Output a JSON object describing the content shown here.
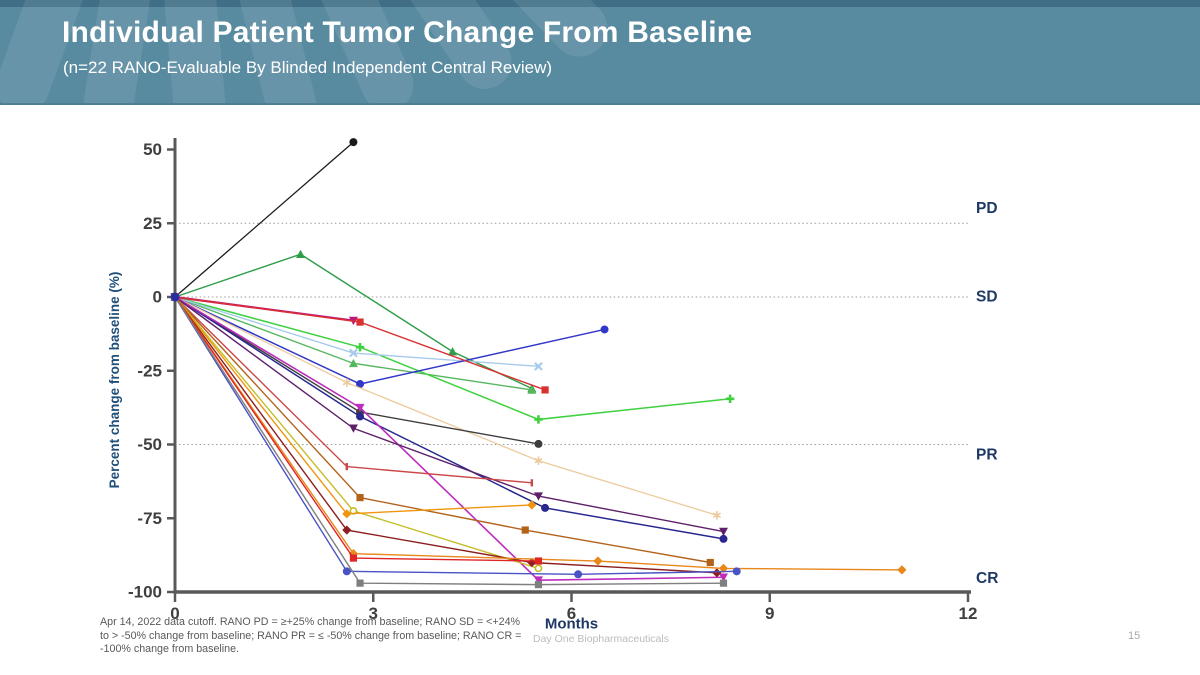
{
  "slide": {
    "title": "Individual Patient Tumor Change From Baseline",
    "subtitle": "(n=22 RANO-Evaluable By Blinded Independent Central Review)",
    "footnote_lines": [
      "Apr 14, 2022 data cutoff. RANO PD = ≥+25% change from baseline; RANO SD = <+24%",
      "to > -50% change from baseline; RANO PR = ≤ -50% change from baseline; RANO CR =",
      "-100% change from baseline."
    ],
    "footer_brand": "Day One Biopharmaceuticals",
    "page_number": "15",
    "colors": {
      "header_bg": "#588aa0",
      "header_top_strip": "#3f6e86",
      "axis": "#595959",
      "tick_label": "#3f3f3f",
      "gridline": "#9b9b9b",
      "label_navy": "#1f3864",
      "ylabel_blue": "#1f4e79"
    }
  },
  "chart_data": {
    "type": "line",
    "title": "",
    "xlabel": "Months",
    "ylabel": "Percent change from baseline (%)",
    "xlim": [
      0,
      12
    ],
    "ylim": [
      -100,
      54
    ],
    "xticks": [
      0,
      3,
      6,
      9,
      12
    ],
    "yticks": [
      50,
      25,
      0,
      -25,
      -50,
      -75,
      -100
    ],
    "gridline_values": [
      25,
      0,
      -50
    ],
    "grid": "dotted horizontal at +25, 0, -50; x-axis baseline at -100",
    "legend_position": "none",
    "origin_marker_color": "#2b2ba0",
    "threshold_labels": [
      {
        "label": "PD",
        "value": 30
      },
      {
        "label": "SD",
        "value": 0
      },
      {
        "label": "PR",
        "value": -53.5
      },
      {
        "label": "CR",
        "value": -95.5
      }
    ],
    "series": [
      {
        "name": "patient-01",
        "color": "#1a1a1a",
        "marker": "circle",
        "lw": 1.3,
        "points": [
          [
            0,
            0
          ],
          [
            2.7,
            52.5
          ]
        ]
      },
      {
        "name": "patient-02",
        "color": "#2e9e49",
        "marker": "triangle-up",
        "lw": 1.4,
        "points": [
          [
            0,
            0
          ],
          [
            1.9,
            14.5
          ],
          [
            4.2,
            -18.5
          ],
          [
            5.4,
            -31
          ]
        ]
      },
      {
        "name": "patient-03",
        "color": "#57b75e",
        "marker": "triangle-up",
        "lw": 1.4,
        "points": [
          [
            0,
            0
          ],
          [
            2.7,
            -22.5
          ],
          [
            5.4,
            -31.5
          ]
        ]
      },
      {
        "name": "patient-04",
        "color": "#3fd13f",
        "marker": "plus",
        "lw": 1.5,
        "points": [
          [
            0,
            0
          ],
          [
            2.8,
            -17
          ],
          [
            5.5,
            -41.5
          ],
          [
            8.4,
            -34.5
          ]
        ]
      },
      {
        "name": "patient-05",
        "color": "#a6cbec",
        "marker": "x",
        "lw": 1.4,
        "points": [
          [
            0,
            0
          ],
          [
            2.7,
            -19
          ],
          [
            5.5,
            -23.5
          ]
        ]
      },
      {
        "name": "patient-06",
        "color": "#3137c9",
        "marker": "circle",
        "lw": 1.5,
        "points": [
          [
            0,
            0
          ],
          [
            2.8,
            -29.5
          ],
          [
            6.5,
            -11
          ]
        ]
      },
      {
        "name": "patient-07",
        "color": "#c01878",
        "marker": "triangle-down",
        "lw": 2.2,
        "points": [
          [
            0,
            0
          ],
          [
            2.7,
            -8
          ]
        ]
      },
      {
        "name": "patient-08",
        "color": "#d93131",
        "marker": "square",
        "lw": 1.4,
        "points": [
          [
            0,
            0
          ],
          [
            2.8,
            -8.5
          ],
          [
            5.6,
            -31.5
          ]
        ]
      },
      {
        "name": "patient-09",
        "color": "#ecca9c",
        "marker": "star",
        "lw": 1.3,
        "points": [
          [
            0,
            0
          ],
          [
            2.6,
            -29
          ],
          [
            5.5,
            -55.5
          ],
          [
            8.2,
            -74
          ]
        ]
      },
      {
        "name": "patient-10",
        "color": "#3d3d3d",
        "marker": "circle",
        "lw": 1.4,
        "points": [
          [
            0,
            0
          ],
          [
            2.8,
            -39
          ],
          [
            5.5,
            -49.8
          ]
        ]
      },
      {
        "name": "patient-11",
        "color": "#28288f",
        "marker": "circle",
        "lw": 1.5,
        "points": [
          [
            0,
            0
          ],
          [
            2.8,
            -40.5
          ],
          [
            5.6,
            -71.5
          ],
          [
            8.3,
            -82
          ]
        ]
      },
      {
        "name": "patient-12",
        "color": "#bd2dbd",
        "marker": "triangle-down",
        "lw": 1.6,
        "points": [
          [
            0,
            0
          ],
          [
            2.8,
            -37.5
          ],
          [
            5.5,
            -96
          ],
          [
            8.3,
            -95
          ]
        ]
      },
      {
        "name": "patient-13",
        "color": "#5e2069",
        "marker": "triangle-down",
        "lw": 1.4,
        "points": [
          [
            0,
            0
          ],
          [
            2.7,
            -44.5
          ],
          [
            5.5,
            -67.5
          ],
          [
            8.3,
            -79.5
          ]
        ]
      },
      {
        "name": "patient-14",
        "color": "#cc4848",
        "marker": "tick",
        "lw": 1.4,
        "points": [
          [
            0,
            0
          ],
          [
            2.6,
            -57.5
          ],
          [
            5.4,
            -63
          ]
        ]
      },
      {
        "name": "patient-15",
        "color": "#b3621a",
        "marker": "square",
        "lw": 1.4,
        "points": [
          [
            0,
            0
          ],
          [
            2.8,
            -68
          ],
          [
            5.3,
            -79
          ],
          [
            8.1,
            -90
          ]
        ]
      },
      {
        "name": "patient-16",
        "color": "#c5bd27",
        "marker": "circle-open",
        "lw": 1.4,
        "points": [
          [
            0,
            0
          ],
          [
            2.7,
            -72.5
          ],
          [
            5.5,
            -92
          ]
        ]
      },
      {
        "name": "patient-17",
        "color": "#f0950f",
        "marker": "diamond",
        "lw": 1.4,
        "points": [
          [
            0,
            0
          ],
          [
            2.6,
            -73.5
          ],
          [
            5.4,
            -70.5
          ]
        ]
      },
      {
        "name": "patient-18",
        "color": "#8c1f1f",
        "marker": "diamond",
        "lw": 1.4,
        "points": [
          [
            0,
            0
          ],
          [
            2.6,
            -79
          ],
          [
            5.4,
            -90
          ],
          [
            8.2,
            -93.5
          ]
        ]
      },
      {
        "name": "patient-19",
        "color": "#e8871a",
        "marker": "diamond",
        "lw": 1.4,
        "points": [
          [
            0,
            0
          ],
          [
            2.7,
            -87
          ],
          [
            6.4,
            -89.5
          ],
          [
            8.3,
            -92
          ],
          [
            11,
            -92.5
          ]
        ]
      },
      {
        "name": "patient-20",
        "color": "#e02525",
        "marker": "square",
        "lw": 1.4,
        "points": [
          [
            0,
            0
          ],
          [
            2.7,
            -88.5
          ],
          [
            5.5,
            -89.5
          ]
        ]
      },
      {
        "name": "patient-21",
        "color": "#4953c4",
        "marker": "circle",
        "lw": 1.4,
        "points": [
          [
            0,
            0
          ],
          [
            2.6,
            -93
          ],
          [
            6.1,
            -94
          ],
          [
            8.5,
            -93
          ]
        ]
      },
      {
        "name": "patient-22",
        "color": "#7f7f7f",
        "marker": "square",
        "lw": 1.4,
        "points": [
          [
            0,
            0
          ],
          [
            2.8,
            -97
          ],
          [
            5.5,
            -97.5
          ],
          [
            8.3,
            -97
          ]
        ]
      }
    ]
  }
}
